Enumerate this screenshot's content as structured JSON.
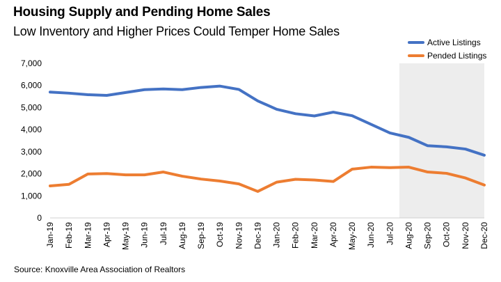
{
  "header": {
    "title": "Housing Supply and Pending Home Sales",
    "subtitle": "Low Inventory and Higher Prices Could Temper Home Sales"
  },
  "footer": {
    "source": "Source: Knoxville Area Association of Realtors"
  },
  "colors": {
    "active": "#4472C4",
    "pended": "#ED7D31",
    "shade": "#EDEDED",
    "axis": "#D0D0D0"
  },
  "chart_data": {
    "type": "line",
    "title": "Housing Supply and Pending Home Sales",
    "subtitle": "Low Inventory and Higher Prices Could Temper Home Sales",
    "xlabel": "",
    "ylabel": "",
    "x": [
      "Jan-19",
      "Feb-19",
      "Mar-19",
      "Apr-19",
      "May-19",
      "Jun-19",
      "Jul-19",
      "Aug-19",
      "Sep-19",
      "Oct-19",
      "Nov-19",
      "Dec-19",
      "Jan-20",
      "Feb-20",
      "Mar-20",
      "Apr-20",
      "May-20",
      "Jun-20",
      "Jul-20",
      "Aug-20",
      "Sep-20",
      "Oct-20",
      "Nov-20",
      "Dec-20"
    ],
    "ylim": [
      0,
      7000
    ],
    "yticks": [
      0,
      1000,
      2000,
      3000,
      4000,
      5000,
      6000,
      7000
    ],
    "ytick_labels": [
      "0",
      "1,000",
      "2,000",
      "3,000",
      "4,000",
      "5,000",
      "6,000",
      "7,000"
    ],
    "grid": false,
    "legend_position": "top-right",
    "shaded_region": {
      "from": "Aug-20",
      "to": "Dec-20"
    },
    "series": [
      {
        "name": "Active Listings",
        "values": [
          5700,
          5650,
          5580,
          5550,
          5680,
          5810,
          5840,
          5810,
          5910,
          5970,
          5820,
          5300,
          4920,
          4720,
          4620,
          4790,
          4630,
          4240,
          3850,
          3650,
          3270,
          3220,
          3120,
          2840
        ]
      },
      {
        "name": "Pended Listings",
        "values": [
          1450,
          1520,
          1990,
          2010,
          1950,
          1950,
          2080,
          1890,
          1760,
          1670,
          1540,
          1200,
          1620,
          1750,
          1720,
          1650,
          2210,
          2300,
          2280,
          2300,
          2080,
          2020,
          1810,
          1490
        ]
      }
    ]
  }
}
